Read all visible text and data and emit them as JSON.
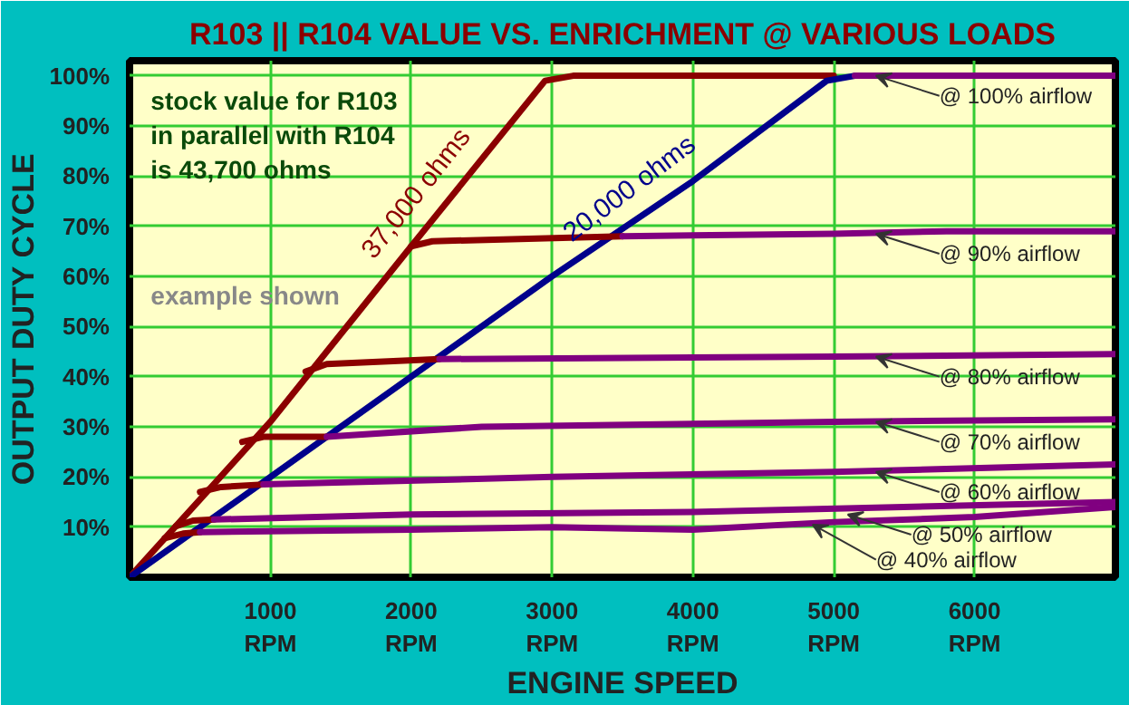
{
  "chart_data": {
    "type": "line",
    "title": "R103 || R104 VALUE VS. ENRICHMENT @ VARIOUS LOADS",
    "xlabel": "ENGINE SPEED",
    "ylabel": "OUTPUT DUTY CYCLE",
    "xlim": [
      0,
      7000
    ],
    "ylim": [
      0,
      103
    ],
    "xticks": [
      {
        "value": 1000,
        "label": "1000\nRPM"
      },
      {
        "value": 2000,
        "label": "2000\nRPM"
      },
      {
        "value": 3000,
        "label": "3000\nRPM"
      },
      {
        "value": 4000,
        "label": "4000\nRPM"
      },
      {
        "value": 5000,
        "label": "5000\nRPM"
      },
      {
        "value": 6000,
        "label": "6000\nRPM"
      }
    ],
    "yticks": [
      {
        "value": 10,
        "label": "10%"
      },
      {
        "value": 20,
        "label": "20%"
      },
      {
        "value": 30,
        "label": "30%"
      },
      {
        "value": 40,
        "label": "40%"
      },
      {
        "value": 50,
        "label": "50%"
      },
      {
        "value": 60,
        "label": "60%"
      },
      {
        "value": 70,
        "label": "70%"
      },
      {
        "value": 80,
        "label": "80%"
      },
      {
        "value": 90,
        "label": "90%"
      },
      {
        "value": 100,
        "label": "100%"
      }
    ],
    "grid": true,
    "series": [
      {
        "name": "37,000 ohms",
        "color": "#8b0000",
        "x": [
          0,
          1000,
          2000,
          2950,
          3150,
          5000
        ],
        "values": [
          0,
          31,
          66,
          99,
          100,
          100
        ]
      },
      {
        "name": "20,000 ohms",
        "color": "#00008b",
        "x": [
          0,
          1000,
          2000,
          3000,
          4000,
          4950,
          5150,
          5300
        ],
        "values": [
          0,
          20,
          40,
          60,
          79,
          99,
          100,
          100
        ]
      },
      {
        "color": "#8b0000",
        "x": [
          2000,
          2150,
          3500
        ],
        "values": [
          66,
          67,
          68
        ]
      },
      {
        "color": "#8b0000",
        "x": [
          1250,
          1400,
          2200
        ],
        "values": [
          41,
          42.5,
          43.5
        ]
      },
      {
        "color": "#8b0000",
        "x": [
          800,
          950,
          1400
        ],
        "values": [
          27,
          28,
          28
        ]
      },
      {
        "color": "#8b0000",
        "x": [
          500,
          650,
          950
        ],
        "values": [
          17,
          18,
          18.5
        ]
      },
      {
        "color": "#8b0000",
        "x": [
          330,
          450,
          600
        ],
        "values": [
          10.2,
          11.3,
          11.5
        ]
      },
      {
        "color": "#8b0000",
        "x": [
          250,
          380,
          500
        ],
        "values": [
          7.8,
          8.7,
          9
        ]
      },
      {
        "color": "#800080",
        "x": [
          5150,
          7000
        ],
        "values": [
          100,
          100
        ]
      },
      {
        "color": "#800080",
        "x": [
          3500,
          5000,
          5800,
          7000
        ],
        "values": [
          68,
          68.5,
          69,
          69
        ]
      },
      {
        "color": "#800080",
        "x": [
          2200,
          5000,
          7000
        ],
        "values": [
          43.5,
          44,
          44.5
        ]
      },
      {
        "color": "#800080",
        "x": [
          1400,
          2500,
          5000,
          7000
        ],
        "values": [
          28,
          30,
          31,
          31.5
        ]
      },
      {
        "color": "#800080",
        "x": [
          950,
          3000,
          5000,
          7000
        ],
        "values": [
          18.5,
          20,
          21,
          22.5
        ]
      },
      {
        "color": "#800080",
        "x": [
          600,
          2000,
          4000,
          7000
        ],
        "values": [
          11.5,
          12.5,
          13,
          15
        ]
      },
      {
        "color": "#800080",
        "x": [
          500,
          2000,
          3000,
          4000,
          5000,
          6000,
          7000
        ],
        "values": [
          9,
          9.5,
          10,
          9.5,
          11,
          12,
          14
        ]
      }
    ],
    "annotations": [
      "stock value for R103 in parallel with R104 is 43,700 ohms",
      "example shown",
      {
        "text": "@ 100% airflow",
        "x": 5300,
        "y": 100
      },
      {
        "text": "@ 90% airflow",
        "x": 5300,
        "y": 68.5
      },
      {
        "text": "@ 80% airflow",
        "x": 5300,
        "y": 44
      },
      {
        "text": "@ 70% airflow",
        "x": 5300,
        "y": 31
      },
      {
        "text": "@ 60% airflow",
        "x": 5300,
        "y": 21
      },
      {
        "text": "@ 50% airflow",
        "x": 5100,
        "y": 12.5
      },
      {
        "text": "@ 40% airflow",
        "x": 4850,
        "y": 10.5
      }
    ]
  }
}
